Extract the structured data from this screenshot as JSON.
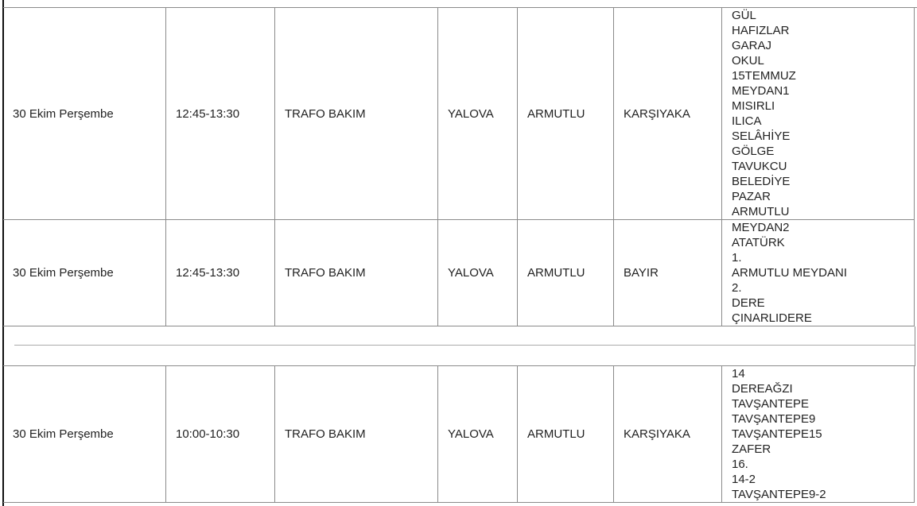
{
  "rows": [
    {
      "date": "30 Ekim Perşembe",
      "time": "12:45-13:30",
      "reason": "TRAFO BAKIM",
      "city": "YALOVA",
      "district": "ARMUTLU",
      "neighborhood": "KARŞIYAKA",
      "streets": [
        "GÜL",
        "HAFIZLAR",
        "GARAJ",
        "OKUL",
        "15TEMMUZ",
        "MEYDAN1",
        "MISIRLI",
        "ILICA",
        "SELÂHİYE",
        "GÖLGE",
        "TAVUKCU",
        "BELEDİYE",
        "PAZAR",
        "ARMUTLU"
      ]
    },
    {
      "date": "30 Ekim Perşembe",
      "time": "12:45-13:30",
      "reason": "TRAFO BAKIM",
      "city": "YALOVA",
      "district": "ARMUTLU",
      "neighborhood": "BAYIR",
      "streets": [
        "MEYDAN2",
        "ATATÜRK",
        "1.",
        "ARMUTLU MEYDANI",
        "2.",
        "DERE",
        "ÇINARLIDERE"
      ]
    },
    {
      "date": "30 Ekim Perşembe",
      "time": "10:00-10:30",
      "reason": "TRAFO BAKIM",
      "city": "YALOVA",
      "district": "ARMUTLU",
      "neighborhood": "KARŞIYAKA",
      "streets": [
        "14",
        "DEREAĞZI",
        "TAVŞANTEPE",
        "TAVŞANTEPE9",
        "TAVŞANTEPE15",
        "ZAFER",
        "16.",
        "14-2",
        "TAVŞANTEPE9-2"
      ]
    }
  ]
}
